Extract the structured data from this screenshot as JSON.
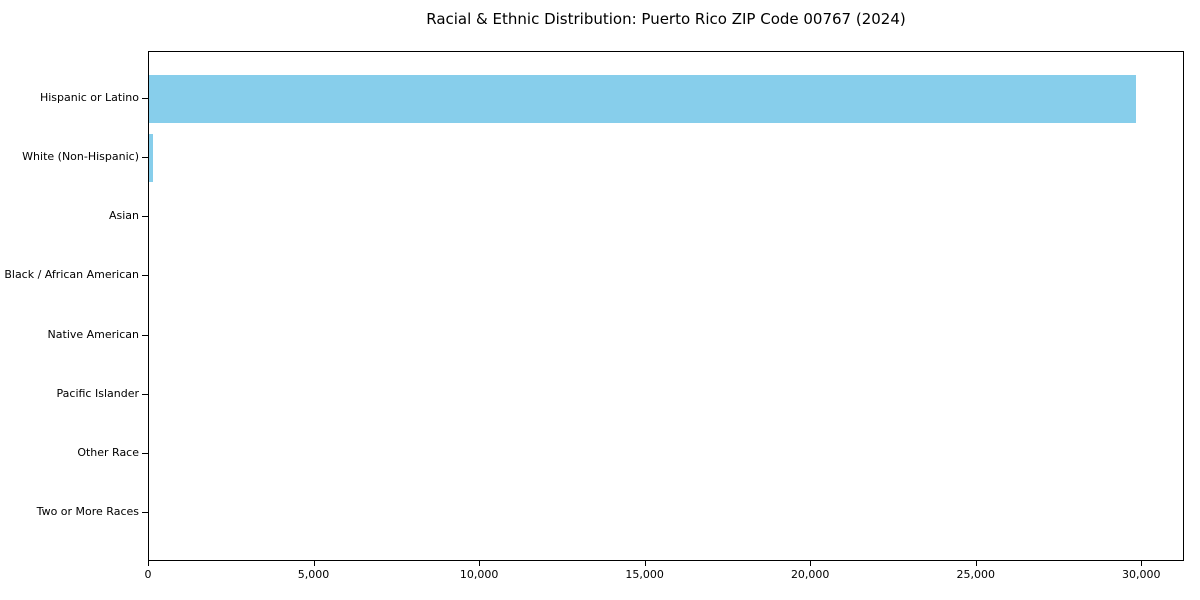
{
  "chart_data": {
    "type": "bar",
    "orientation": "horizontal",
    "title": "Racial & Ethnic Distribution: Puerto Rico ZIP Code 00767 (2024)",
    "categories": [
      "Hispanic or Latino",
      "White (Non-Hispanic)",
      "Asian",
      "Black / African American",
      "Native American",
      "Pacific Islander",
      "Other Race",
      "Two or More Races"
    ],
    "values": [
      29800,
      120,
      0,
      0,
      0,
      0,
      0,
      0
    ],
    "xlabel": "",
    "ylabel": "",
    "xlim": [
      0,
      31290
    ],
    "xticks": [
      0,
      5000,
      10000,
      15000,
      20000,
      25000,
      30000
    ],
    "xtick_labels": [
      "0",
      "5,000",
      "10,000",
      "15,000",
      "20,000",
      "25,000",
      "30,000"
    ],
    "bar_color": "#87CEEB",
    "grid": false,
    "legend": null
  },
  "colors": {
    "bar": "#87CEEB",
    "axis": "#000000",
    "text": "#000000",
    "background": "#ffffff"
  }
}
